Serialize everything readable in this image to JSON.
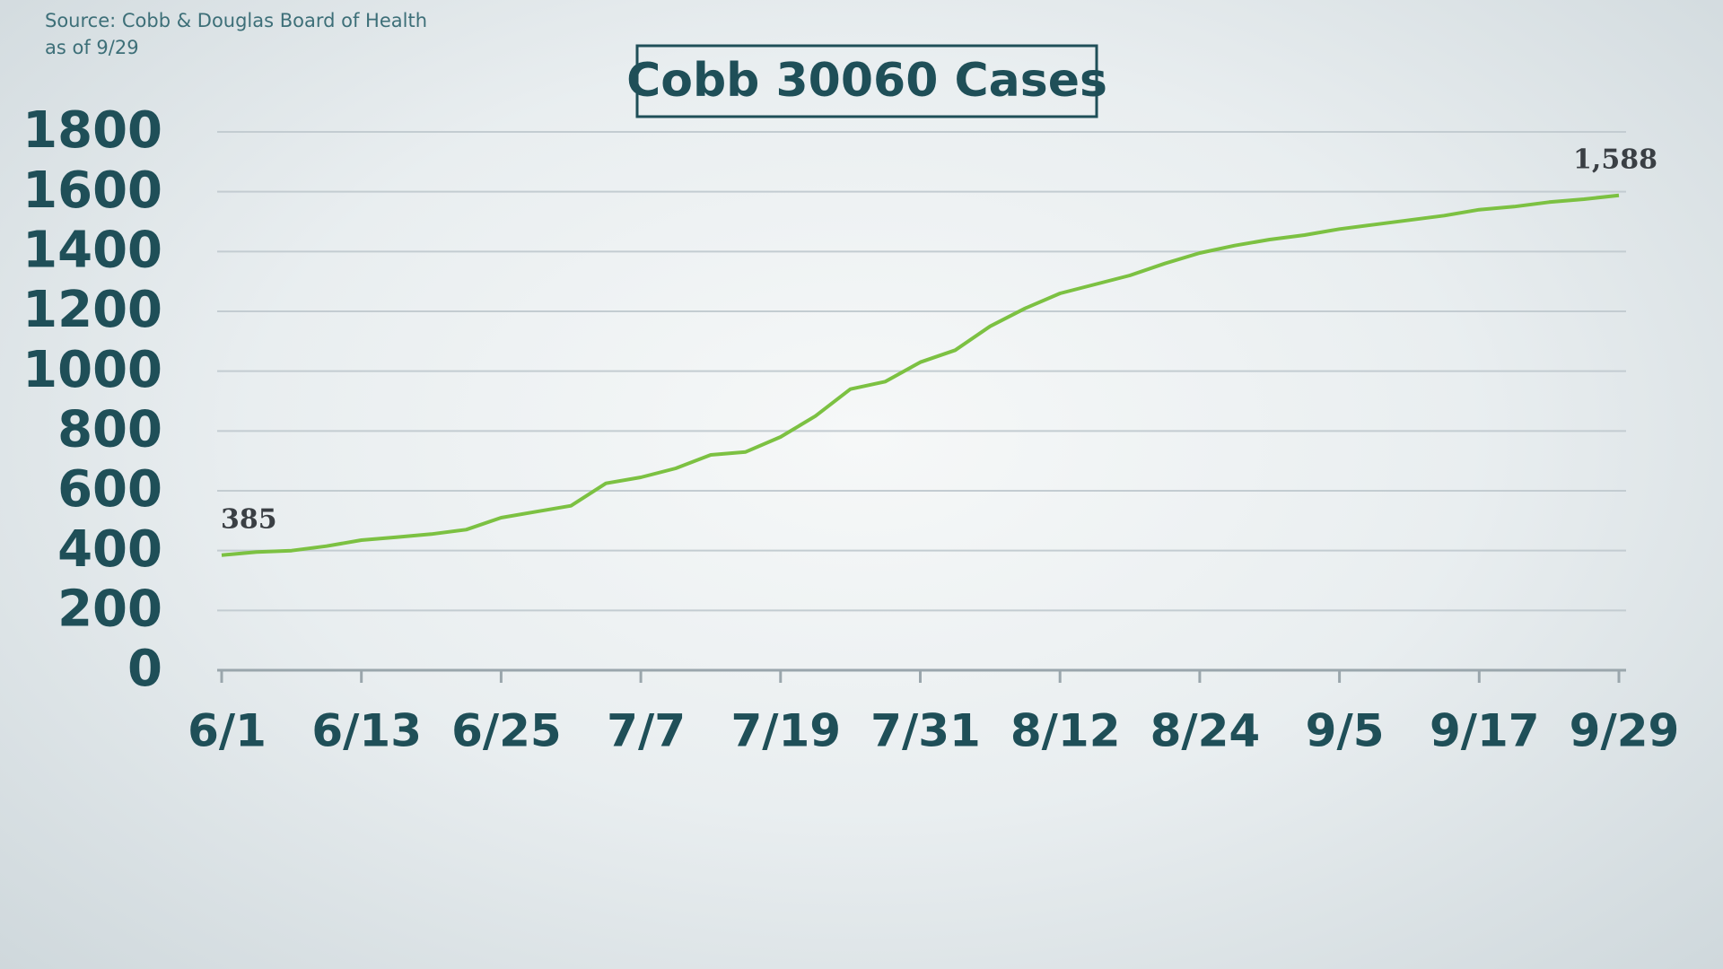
{
  "chart_data": {
    "type": "line",
    "title": "Cobb 30060 Cases",
    "source": "Source: Cobb & Douglas Board of Health",
    "date_note": "as of 9/29",
    "categories": [
      "6/1",
      null,
      null,
      null,
      "6/13",
      null,
      null,
      null,
      "6/25",
      null,
      null,
      null,
      "7/7",
      null,
      null,
      null,
      "7/19",
      null,
      null,
      null,
      "7/31",
      null,
      null,
      null,
      "8/12",
      null,
      null,
      null,
      "8/24",
      null,
      null,
      null,
      "9/5",
      null,
      null,
      null,
      "9/17",
      null,
      null,
      null,
      "9/29"
    ],
    "values": [
      385,
      395,
      400,
      415,
      435,
      445,
      455,
      470,
      510,
      530,
      550,
      625,
      645,
      675,
      720,
      730,
      780,
      850,
      940,
      965,
      1030,
      1070,
      1150,
      1210,
      1260,
      1290,
      1320,
      1360,
      1395,
      1420,
      1440,
      1455,
      1475,
      1490,
      1505,
      1520,
      1540,
      1550,
      1565,
      1575,
      1588
    ],
    "value_labels": [
      "385",
      null,
      null,
      null,
      null,
      null,
      null,
      null,
      null,
      null,
      null,
      null,
      null,
      null,
      null,
      null,
      null,
      null,
      null,
      null,
      null,
      null,
      null,
      null,
      null,
      null,
      null,
      null,
      null,
      null,
      null,
      null,
      null,
      null,
      null,
      null,
      null,
      null,
      null,
      null,
      "1,588"
    ],
    "color": "#7cc142",
    "ylim": [
      0,
      1800
    ],
    "yticks": [
      0,
      200,
      400,
      600,
      800,
      1000,
      1200,
      1400,
      1600,
      1800
    ],
    "grid": true
  }
}
